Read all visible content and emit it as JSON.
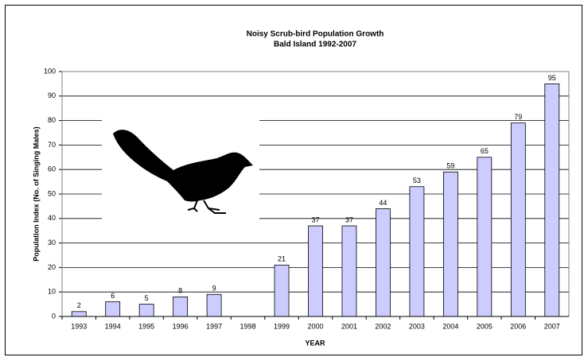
{
  "chart_data": {
    "type": "bar",
    "title": "Noisy Scrub-bird Population Growth",
    "subtitle": "Bald Island 1992-2007",
    "x_label": "YEAR",
    "y_label": "Population Index (No. of Singing Males)",
    "categories": [
      "1993",
      "1994",
      "1995",
      "1996",
      "1997",
      "1998",
      "1999",
      "2000",
      "2001",
      "2002",
      "2003",
      "2004",
      "2005",
      "2006",
      "2007"
    ],
    "values": [
      2,
      6,
      5,
      8,
      9,
      null,
      21,
      37,
      37,
      44,
      53,
      59,
      65,
      79,
      95
    ],
    "color": "#ccccff",
    "ylim": [
      0,
      100
    ],
    "yticks": [
      0,
      10,
      20,
      30,
      40,
      50,
      60,
      70,
      80,
      90,
      100
    ],
    "grid": true
  }
}
